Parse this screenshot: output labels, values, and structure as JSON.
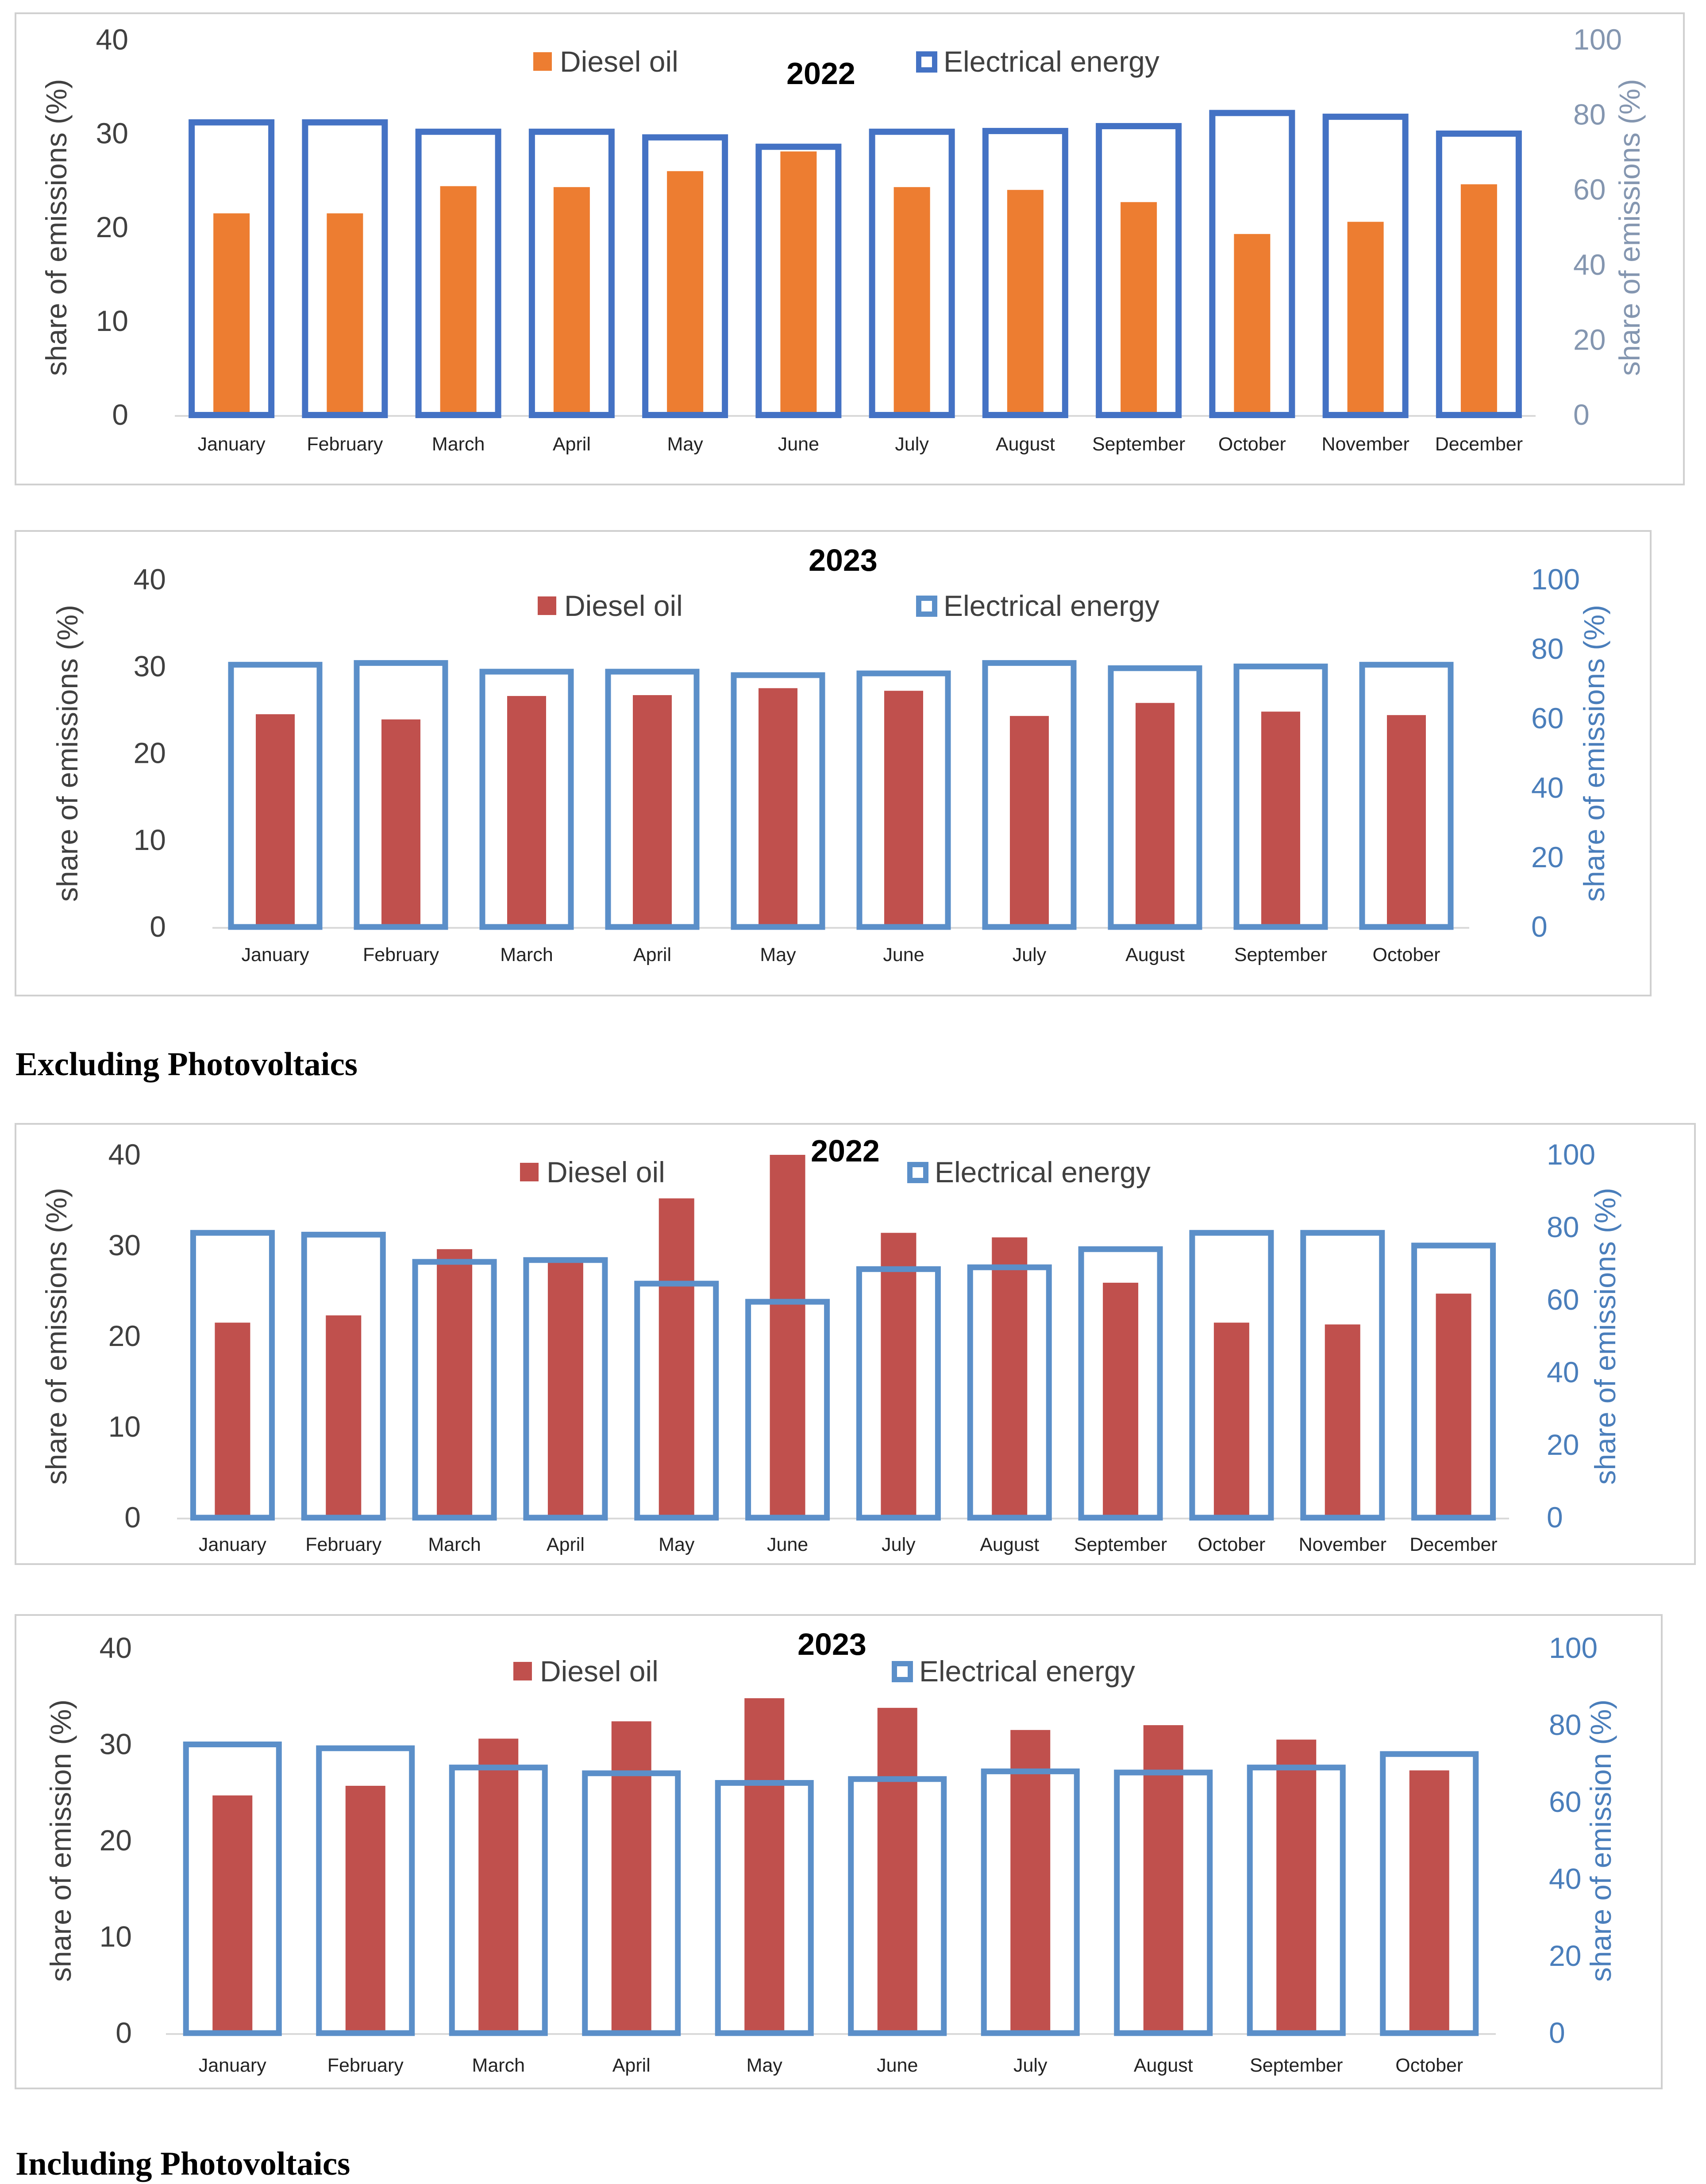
{
  "captions": {
    "excluding": "Excluding Photovoltaics",
    "including": "Including Photovoltaics"
  },
  "colors": {
    "frame": "#d0d0d0",
    "elec": "#4472c4",
    "elec_light": "#5b8fc9",
    "diesel_orange": "#ed7d31",
    "diesel_red": "#c0504d",
    "axis_left": "#404040",
    "axis_right_a": "#8496b0",
    "axis_right_b": "#4a7ebb"
  },
  "chart_data": [
    {
      "type": "bar",
      "title": "2022",
      "categories": [
        "January",
        "February",
        "March",
        "April",
        "May",
        "June",
        "July",
        "August",
        "September",
        "October",
        "November",
        "December"
      ],
      "series": [
        {
          "name": "Diesel oil",
          "axis": "left",
          "values": [
            21.5,
            21.5,
            24.4,
            24.3,
            26.0,
            28.1,
            24.3,
            24.0,
            22.7,
            19.3,
            20.6,
            24.6
          ]
        },
        {
          "name": "Electrical energy",
          "axis": "right",
          "values": [
            78,
            78,
            75.5,
            75.5,
            74,
            71.5,
            75.5,
            75.7,
            77,
            80.5,
            79.5,
            75
          ]
        }
      ],
      "ylabel": "share of emissions (%)",
      "y2label": "share of emissions (%)",
      "ylim": [
        0,
        40
      ],
      "yticks": [
        0,
        10,
        20,
        30,
        40
      ],
      "y2lim": [
        0,
        100
      ],
      "y2ticks": [
        0,
        20,
        40,
        60,
        80,
        100
      ],
      "diesel_color": "orange",
      "right_color": "a",
      "ylabel_dark": true
    },
    {
      "type": "bar",
      "title": "2023",
      "categories": [
        "January",
        "February",
        "March",
        "April",
        "May",
        "June",
        "July",
        "August",
        "September",
        "October"
      ],
      "series": [
        {
          "name": "Diesel oil",
          "axis": "left",
          "values": [
            24.5,
            23.9,
            26.6,
            26.7,
            27.5,
            27.2,
            24.3,
            25.8,
            24.8,
            24.4
          ]
        },
        {
          "name": "Electrical energy",
          "axis": "right",
          "values": [
            75.5,
            76,
            73.5,
            73.5,
            72.5,
            73,
            76,
            74.5,
            75,
            75.5
          ]
        }
      ],
      "ylabel": "share of emissions (%)",
      "y2label": "share of emissions (%)",
      "ylim": [
        0,
        40
      ],
      "yticks": [
        0,
        10,
        20,
        30,
        40
      ],
      "y2lim": [
        0,
        100
      ],
      "y2ticks": [
        0,
        20,
        40,
        60,
        80,
        100
      ],
      "diesel_color": "red",
      "right_color": "b",
      "ylabel_dark": true
    },
    {
      "type": "bar",
      "title": "2022",
      "categories": [
        "January",
        "February",
        "March",
        "April",
        "May",
        "June",
        "July",
        "August",
        "September",
        "October",
        "November",
        "December"
      ],
      "series": [
        {
          "name": "Diesel oil",
          "axis": "left",
          "values": [
            21.5,
            22.3,
            29.6,
            28.3,
            35.2,
            40.0,
            31.4,
            30.9,
            25.9,
            21.5,
            21.3,
            24.7
          ]
        },
        {
          "name": "Electrical energy",
          "axis": "right",
          "values": [
            78.5,
            78,
            70.5,
            71,
            64.5,
            59.5,
            68.5,
            69,
            74,
            78.5,
            78.5,
            75
          ]
        }
      ],
      "ylabel": "share of emissions (%)",
      "y2label": "share of emissions (%)",
      "ylim": [
        0,
        40
      ],
      "yticks": [
        0,
        10,
        20,
        30,
        40
      ],
      "y2lim": [
        0,
        100
      ],
      "y2ticks": [
        0,
        20,
        40,
        60,
        80,
        100
      ],
      "diesel_color": "red",
      "right_color": "b",
      "ylabel_dark": true
    },
    {
      "type": "bar",
      "title": "2023",
      "categories": [
        "January",
        "February",
        "March",
        "April",
        "May",
        "June",
        "July",
        "August",
        "September",
        "October"
      ],
      "series": [
        {
          "name": "Diesel oil",
          "axis": "left",
          "values": [
            24.7,
            25.7,
            30.6,
            32.4,
            34.8,
            33.8,
            31.5,
            32.0,
            30.5,
            27.3
          ]
        },
        {
          "name": "Electrical energy",
          "axis": "right",
          "values": [
            75,
            74,
            69,
            67.5,
            65,
            66,
            68,
            67.7,
            69,
            72.5
          ]
        }
      ],
      "ylabel": "share of emission (%)",
      "y2label": "share of emission (%)",
      "ylim": [
        0,
        40
      ],
      "yticks": [
        0,
        10,
        20,
        30,
        40
      ],
      "y2lim": [
        0,
        100
      ],
      "y2ticks": [
        0,
        20,
        40,
        60,
        80,
        100
      ],
      "diesel_color": "red",
      "right_color": "b",
      "ylabel_dark": true
    }
  ]
}
